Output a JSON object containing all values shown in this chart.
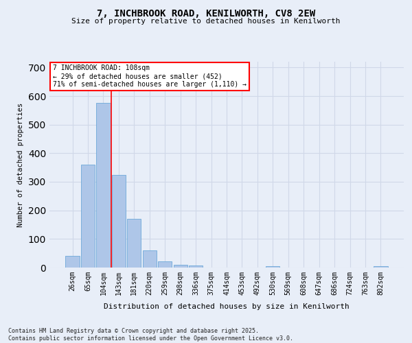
{
  "title1": "7, INCHBROOK ROAD, KENILWORTH, CV8 2EW",
  "title2": "Size of property relative to detached houses in Kenilworth",
  "xlabel": "Distribution of detached houses by size in Kenilworth",
  "ylabel": "Number of detached properties",
  "categories": [
    "26sqm",
    "65sqm",
    "104sqm",
    "143sqm",
    "181sqm",
    "220sqm",
    "259sqm",
    "298sqm",
    "336sqm",
    "375sqm",
    "414sqm",
    "453sqm",
    "492sqm",
    "530sqm",
    "569sqm",
    "608sqm",
    "647sqm",
    "686sqm",
    "724sqm",
    "763sqm",
    "802sqm"
  ],
  "values": [
    40,
    360,
    575,
    325,
    170,
    60,
    22,
    10,
    7,
    0,
    0,
    0,
    0,
    5,
    0,
    0,
    0,
    0,
    0,
    0,
    5
  ],
  "bar_color": "#aec6e8",
  "bar_edge_color": "#5a9fd4",
  "grid_color": "#d0d8e8",
  "background_color": "#e8eef8",
  "annotation_box_text": "7 INCHBROOK ROAD: 108sqm\n← 29% of detached houses are smaller (452)\n71% of semi-detached houses are larger (1,110) →",
  "red_line_x": 2.5,
  "ylim": [
    0,
    720
  ],
  "yticks": [
    0,
    100,
    200,
    300,
    400,
    500,
    600,
    700
  ],
  "footer": "Contains HM Land Registry data © Crown copyright and database right 2025.\nContains public sector information licensed under the Open Government Licence v3.0."
}
